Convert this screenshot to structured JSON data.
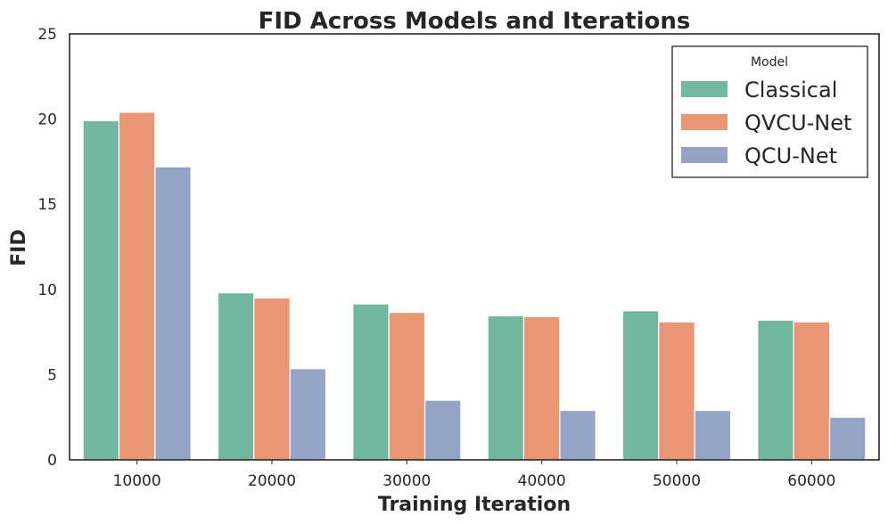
{
  "chart_data": {
    "type": "bar",
    "title": "FID Across Models and Iterations",
    "xlabel": "Training Iteration",
    "ylabel": "FID",
    "ylim": [
      0,
      25
    ],
    "yticks": [
      "0",
      "5",
      "10",
      "15",
      "20",
      "25"
    ],
    "categories": [
      "10000",
      "20000",
      "30000",
      "40000",
      "50000",
      "60000"
    ],
    "series": [
      {
        "name": "Classical",
        "color": "#72b8a1",
        "values": [
          19.9,
          9.8,
          9.15,
          8.45,
          8.75,
          8.2
        ]
      },
      {
        "name": "QVCU-Net",
        "color": "#e99675",
        "values": [
          20.4,
          9.5,
          8.65,
          8.4,
          8.1,
          8.1
        ]
      },
      {
        "name": "QCU-Net",
        "color": "#95a4c6",
        "values": [
          17.2,
          5.35,
          3.5,
          2.9,
          2.9,
          2.5
        ]
      }
    ],
    "legend": {
      "title": "Model",
      "placement": "top-right"
    },
    "grid": false
  }
}
